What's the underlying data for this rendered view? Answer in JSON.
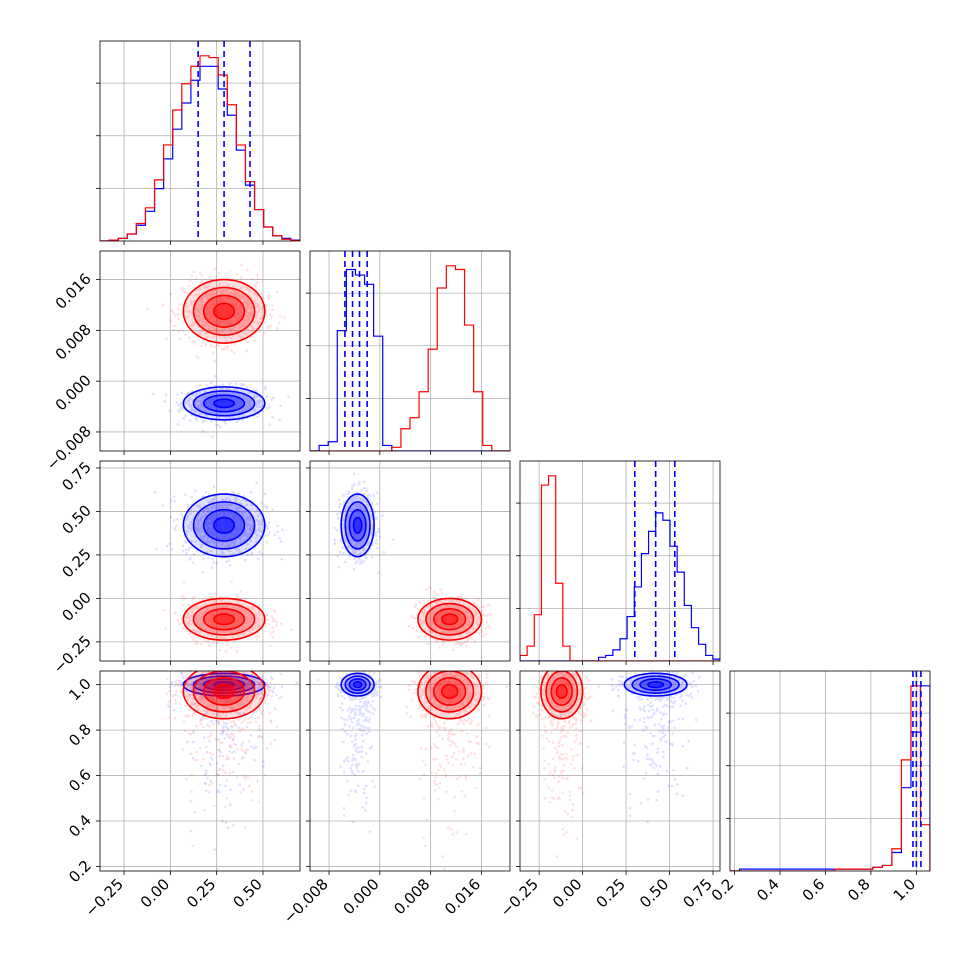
{
  "chart_data": {
    "type": "corner",
    "colors": {
      "series_a": "#0000ff",
      "series_b": "#ff0000"
    },
    "grid": true,
    "parameters": [
      {
        "range": [
          -0.38,
          0.7
        ],
        "ticks": [
          -0.25,
          0.0,
          0.25,
          0.5
        ],
        "tick_labels": [
          "−0.25",
          "0.00",
          "0.25",
          "0.50"
        ]
      },
      {
        "range": [
          -0.011,
          0.0205
        ],
        "ticks": [
          -0.008,
          0.0,
          0.008,
          0.016
        ],
        "tick_labels": [
          "−0.008",
          "0.000",
          "0.008",
          "0.016"
        ]
      },
      {
        "range": [
          -0.36,
          0.79
        ],
        "ticks": [
          -0.25,
          0.0,
          0.25,
          0.5,
          0.75
        ],
        "tick_labels": [
          "−0.25",
          "0.00",
          "0.25",
          "0.50",
          "0.75"
        ]
      },
      {
        "range": [
          0.18,
          1.06
        ],
        "ticks": [
          0.2,
          0.4,
          0.6,
          0.8,
          1.0
        ],
        "tick_labels": [
          "0.2",
          "0.4",
          "0.6",
          "0.8",
          "1.0"
        ]
      }
    ],
    "series": [
      {
        "color": "#0000ff",
        "means": [
          0.29,
          -0.0035,
          0.42,
          1.0
        ],
        "sigmas": [
          0.11,
          0.0013,
          0.09,
          0.025
        ],
        "quantiles": [
          [
            0.15,
            0.29,
            0.43
          ],
          [
            -0.0055,
            -0.0043,
            -0.0032,
            -0.002
          ],
          [
            0.3,
            0.42,
            0.53
          ],
          [
            0.985,
            1.0,
            1.02
          ]
        ],
        "histograms": [
          [
            0,
            0.5,
            1.5,
            4,
            9,
            17,
            30,
            47,
            64,
            79,
            92,
            100,
            100,
            87,
            72,
            52,
            32,
            18,
            8,
            3,
            1.5,
            0.5
          ],
          [
            0,
            3,
            5,
            65,
            98,
            95,
            90,
            62,
            3,
            0,
            0,
            0,
            0,
            0,
            0,
            0,
            0,
            0,
            0,
            0,
            0,
            0
          ],
          [
            0,
            0,
            0,
            0,
            0,
            0,
            0,
            0,
            0,
            0,
            0,
            2,
            3,
            6,
            12,
            24,
            40,
            58,
            70,
            80,
            76,
            62,
            48,
            30,
            18,
            9,
            3,
            1
          ],
          [
            0,
            1,
            1,
            1,
            1,
            1,
            1,
            1,
            1,
            1,
            1,
            1,
            1,
            1,
            1,
            2,
            3,
            10,
            45,
            75,
            100
          ]
        ]
      },
      {
        "color": "#ff0000",
        "means": [
          0.29,
          0.011,
          -0.12,
          0.97
        ],
        "sigmas": [
          0.11,
          0.0025,
          0.06,
          0.06
        ],
        "quantiles": [],
        "histograms": [
          [
            0,
            0.5,
            1.5,
            4,
            10,
            19,
            35,
            55,
            75,
            90,
            100,
            106,
            105,
            95,
            78,
            55,
            34,
            18,
            8,
            3,
            1,
            0.3
          ],
          [
            0,
            0,
            0,
            0,
            0,
            0,
            0,
            0,
            0,
            2,
            12,
            18,
            32,
            55,
            88,
            100,
            98,
            68,
            32,
            3,
            0,
            0
          ],
          [
            3,
            8,
            25,
            95,
            100,
            42,
            8,
            0,
            0,
            0,
            0,
            0,
            0,
            0,
            0,
            0,
            0,
            0,
            0,
            0,
            0,
            0,
            0,
            0,
            0,
            0,
            0,
            0
          ],
          [
            0,
            0,
            0,
            0,
            0,
            0,
            0,
            0,
            0,
            0,
            0,
            1,
            1,
            1,
            1,
            2,
            3,
            12,
            60,
            100,
            25
          ]
        ]
      }
    ]
  }
}
